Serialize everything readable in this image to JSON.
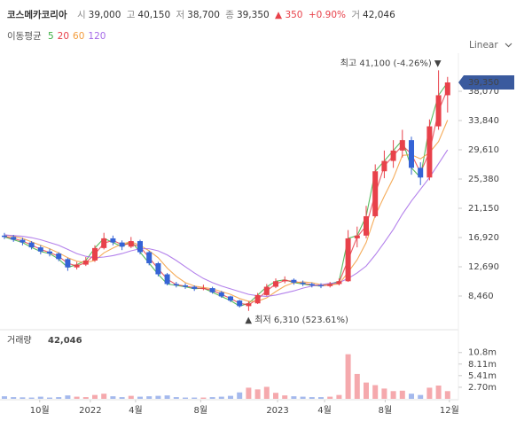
{
  "header": {
    "name": "코스메카코리아",
    "quote": [
      {
        "label": "시",
        "value": "39,000"
      },
      {
        "label": "고",
        "value": "40,150"
      },
      {
        "label": "저",
        "value": "38,700"
      },
      {
        "label": "종",
        "value": "39,350"
      }
    ],
    "change": "▲ 350",
    "change_pct": "+0.90%",
    "volume_label": "거",
    "volume": "42,046"
  },
  "scale_mode": "Linear",
  "chart_data": {
    "type": "candlestick",
    "ma_label": "이동평균",
    "up_color": "#e8414a",
    "down_color": "#3563d6",
    "categories": [
      null,
      null,
      null,
      null,
      null,
      null,
      null,
      null,
      null,
      null,
      null,
      null,
      null,
      null,
      null,
      null,
      null,
      null,
      null,
      null,
      null,
      null,
      null,
      null,
      null,
      null,
      null,
      null,
      null,
      null,
      null,
      null,
      null,
      null,
      null,
      null,
      null,
      null,
      null,
      null,
      null,
      null,
      null,
      null,
      null,
      null,
      null,
      null,
      null,
      null
    ],
    "open": [
      17200,
      17000,
      16600,
      16200,
      15500,
      14900,
      14600,
      13800,
      12600,
      13000,
      13600,
      15400,
      16800,
      16200,
      15600,
      16400,
      14800,
      13200,
      11600,
      10200,
      10000,
      9800,
      9500,
      9600,
      9000,
      8400,
      7800,
      7000,
      7400,
      8600,
      9800,
      10600,
      10800,
      10400,
      10200,
      10000,
      9900,
      10200,
      10600,
      16800,
      17200,
      20000,
      26500,
      28000,
      29500,
      31000,
      27000,
      25600,
      33000,
      37500
    ],
    "high": [
      17600,
      17300,
      16900,
      16400,
      15800,
      15300,
      14800,
      14000,
      13400,
      14100,
      15800,
      17600,
      17200,
      16500,
      17000,
      16600,
      15000,
      13400,
      11800,
      10500,
      10300,
      10000,
      10100,
      9800,
      9200,
      8500,
      7900,
      7700,
      8900,
      10200,
      11000,
      11300,
      11000,
      10700,
      10400,
      10300,
      10500,
      11000,
      18000,
      18500,
      21500,
      27500,
      29500,
      31000,
      32500,
      31500,
      27800,
      34000,
      41100,
      40150
    ],
    "low": [
      16700,
      16300,
      15800,
      15200,
      14500,
      14200,
      13500,
      12100,
      12300,
      12800,
      13400,
      15200,
      15800,
      15100,
      15400,
      14500,
      12900,
      11300,
      10000,
      9700,
      9500,
      9200,
      9300,
      8800,
      8200,
      7600,
      6800,
      6310,
      7300,
      8500,
      9600,
      10300,
      10100,
      9900,
      9700,
      9600,
      9700,
      10000,
      10500,
      15500,
      16800,
      19800,
      25500,
      27000,
      28500,
      26000,
      24500,
      25200,
      32500,
      35000
    ],
    "close": [
      17000,
      16600,
      16200,
      15500,
      14900,
      14600,
      13800,
      12600,
      13000,
      13600,
      15400,
      16800,
      16200,
      15600,
      16400,
      14800,
      13200,
      11600,
      10200,
      10000,
      9800,
      9500,
      9600,
      9000,
      8400,
      7800,
      7000,
      7400,
      8600,
      9800,
      10600,
      10800,
      10400,
      10200,
      10000,
      9900,
      10200,
      10600,
      16800,
      17200,
      20000,
      26500,
      28000,
      29500,
      31000,
      27000,
      25600,
      33000,
      37500,
      39350
    ],
    "series": [
      {
        "name": "5",
        "color": "#3cb043",
        "values": [
          17000,
          16600,
          16200,
          15500,
          14900,
          14600,
          13800,
          12600,
          13000,
          13600,
          15400,
          16800,
          16200,
          15600,
          16400,
          14800,
          13200,
          11600,
          10200,
          10000,
          9800,
          9500,
          9600,
          9000,
          8400,
          7800,
          7000,
          7400,
          8600,
          9800,
          10600,
          10800,
          10400,
          10200,
          10000,
          9900,
          10200,
          10600,
          16800,
          17200,
          20000,
          26500,
          28000,
          29500,
          31000,
          27000,
          25600,
          33000,
          37500,
          39350
        ]
      },
      {
        "name": "20",
        "color": "#e8414a",
        "values": [
          17100,
          16800,
          16400,
          15850,
          15200,
          14750,
          14200,
          13200,
          12800,
          13300,
          14500,
          16100,
          16500,
          15900,
          16000,
          15600,
          14000,
          12400,
          10900,
          10100,
          9900,
          9650,
          9550,
          9300,
          8700,
          8100,
          7400,
          7200,
          8000,
          9200,
          10200,
          10700,
          10600,
          10300,
          10100,
          9950,
          10050,
          10400,
          13700,
          17000,
          18600,
          23250,
          27250,
          28750,
          30250,
          29000,
          26300,
          29300,
          35250,
          38400
        ]
      },
      {
        "name": "60",
        "color": "#f39c3c",
        "values": [
          17300,
          17100,
          16800,
          16300,
          15800,
          15300,
          14700,
          14000,
          13500,
          13300,
          13600,
          14700,
          15400,
          16000,
          16300,
          15800,
          15000,
          14000,
          12500,
          11300,
          10400,
          9900,
          9700,
          9500,
          9100,
          8700,
          8100,
          7700,
          7700,
          8200,
          9100,
          9900,
          10400,
          10500,
          10400,
          10100,
          10100,
          10200,
          11900,
          13700,
          16200,
          20100,
          22900,
          25500,
          28800,
          28900,
          28300,
          29200,
          30800,
          33900
        ]
      },
      {
        "name": "120",
        "color": "#a66be8",
        "values": [
          17300,
          17200,
          17100,
          16900,
          16600,
          16200,
          15800,
          15200,
          14600,
          14200,
          14000,
          14100,
          14300,
          14600,
          15000,
          15300,
          15300,
          15000,
          14400,
          13600,
          12700,
          11800,
          11000,
          10400,
          9900,
          9500,
          9100,
          8700,
          8500,
          8400,
          8600,
          8900,
          9200,
          9600,
          9900,
          10100,
          10300,
          10400,
          11000,
          11800,
          12800,
          14400,
          16200,
          18100,
          20300,
          22200,
          23900,
          25600,
          27600,
          29600
        ]
      }
    ],
    "ylim": [
      3845,
      42940
    ],
    "yticks": [
      {
        "value": 8460,
        "label": "8,460"
      },
      {
        "value": 12690,
        "label": "12,690"
      },
      {
        "value": 16920,
        "label": "16,920"
      },
      {
        "value": 21150,
        "label": "21,150"
      },
      {
        "value": 25380,
        "label": "25,380"
      },
      {
        "value": 29610,
        "label": "29,610"
      },
      {
        "value": 33840,
        "label": "33,840"
      },
      {
        "value": 38070,
        "label": "38,070"
      }
    ],
    "xticks": [
      {
        "value": 3.9,
        "label": "10월"
      },
      {
        "value": 9.5,
        "label": "2022"
      },
      {
        "value": 14.5,
        "label": "4월"
      },
      {
        "value": 21.7,
        "label": "8월"
      },
      {
        "value": 30.2,
        "label": "2023"
      },
      {
        "value": 35.4,
        "label": "4월"
      },
      {
        "value": 42.1,
        "label": "8월"
      },
      {
        "value": 49.2,
        "label": "12월"
      }
    ],
    "last_close_label": "39,350",
    "high_annotation": "최고 41,100 (-4.26%) ▼",
    "low_annotation": "▲ 최저 6,310 (523.61%)",
    "volume": {
      "label": "거래량",
      "last": "42,046",
      "values": [
        600000,
        400000,
        350000,
        300000,
        500000,
        300000,
        400000,
        800000,
        500000,
        400000,
        900000,
        1200000,
        600000,
        400000,
        700000,
        500000,
        600000,
        700000,
        800000,
        400000,
        300000,
        300000,
        300000,
        400000,
        500000,
        700000,
        1500000,
        2600000,
        2200000,
        2800000,
        1400000,
        800000,
        600000,
        500000,
        400000,
        400000,
        500000,
        900000,
        10400000,
        5800000,
        3800000,
        3200000,
        2400000,
        1800000,
        1900000,
        1200000,
        900000,
        2600000,
        3100000,
        1800000
      ],
      "ylim": [
        0,
        15500000
      ],
      "yticks": [
        {
          "value": 2700000,
          "label": "2.70m"
        },
        {
          "value": 5410000,
          "label": "5.41m"
        },
        {
          "value": 8110000,
          "label": "8.11m"
        },
        {
          "value": 10800000,
          "label": "10.8m"
        }
      ]
    }
  }
}
